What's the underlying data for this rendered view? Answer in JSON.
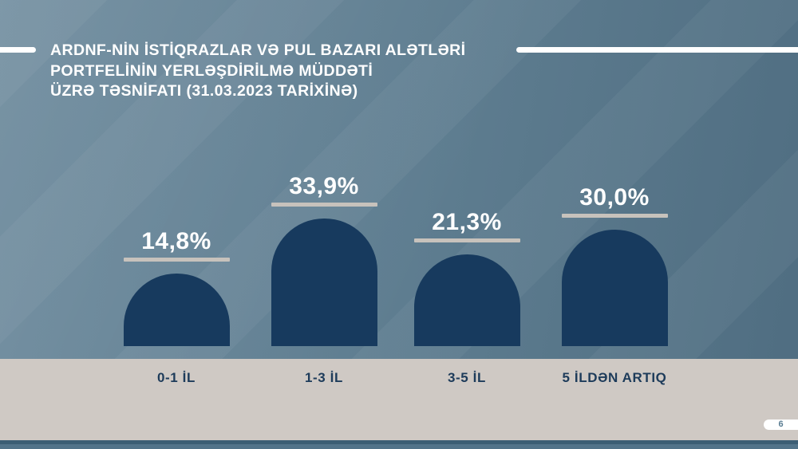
{
  "slide": {
    "title_lines": [
      "ARDNF-NİN İSTİQRAZLAR VƏ PUL BAZARI ALƏTLƏRİ",
      "PORTFELİNİN YERLƏŞDİRİLMƏ MÜDDƏTİ",
      "ÜZRƏ TƏSNİFATI (31.03.2023 TARİXİNƏ)"
    ],
    "page_number": "6"
  },
  "chart_data": {
    "type": "bar",
    "title": "ARDNF-nin istiqrazlar və pul bazarı alətləri portfelinin yerləşdirilmə müddəti üzrə təsnifatı (31.03.2023 tarixinə)",
    "categories": [
      "0-1 İL",
      "1-3 İL",
      "3-5 İL",
      "5 İLDƏN ARTIQ"
    ],
    "values": [
      14.8,
      33.9,
      21.3,
      30.0
    ],
    "value_labels": [
      "14,8%",
      "33,9%",
      "21,3%",
      "30,0%"
    ],
    "unit": "%",
    "ylim": [
      0,
      40
    ],
    "grid": false,
    "legend": false,
    "bar_color": "#173a5e"
  },
  "colors": {
    "background": "#5e7d90",
    "bar": "#173a5e",
    "value_text": "#ffffff",
    "value_underline": "#c7c2bc",
    "category_band": "#cfc9c4",
    "category_text": "#1d3b5a",
    "title_text": "#ffffff",
    "footer_top": "#3c5e74",
    "footer_bottom": "#527389",
    "page_pill_bg": "#ffffff",
    "page_number_text": "#5b7d92"
  }
}
